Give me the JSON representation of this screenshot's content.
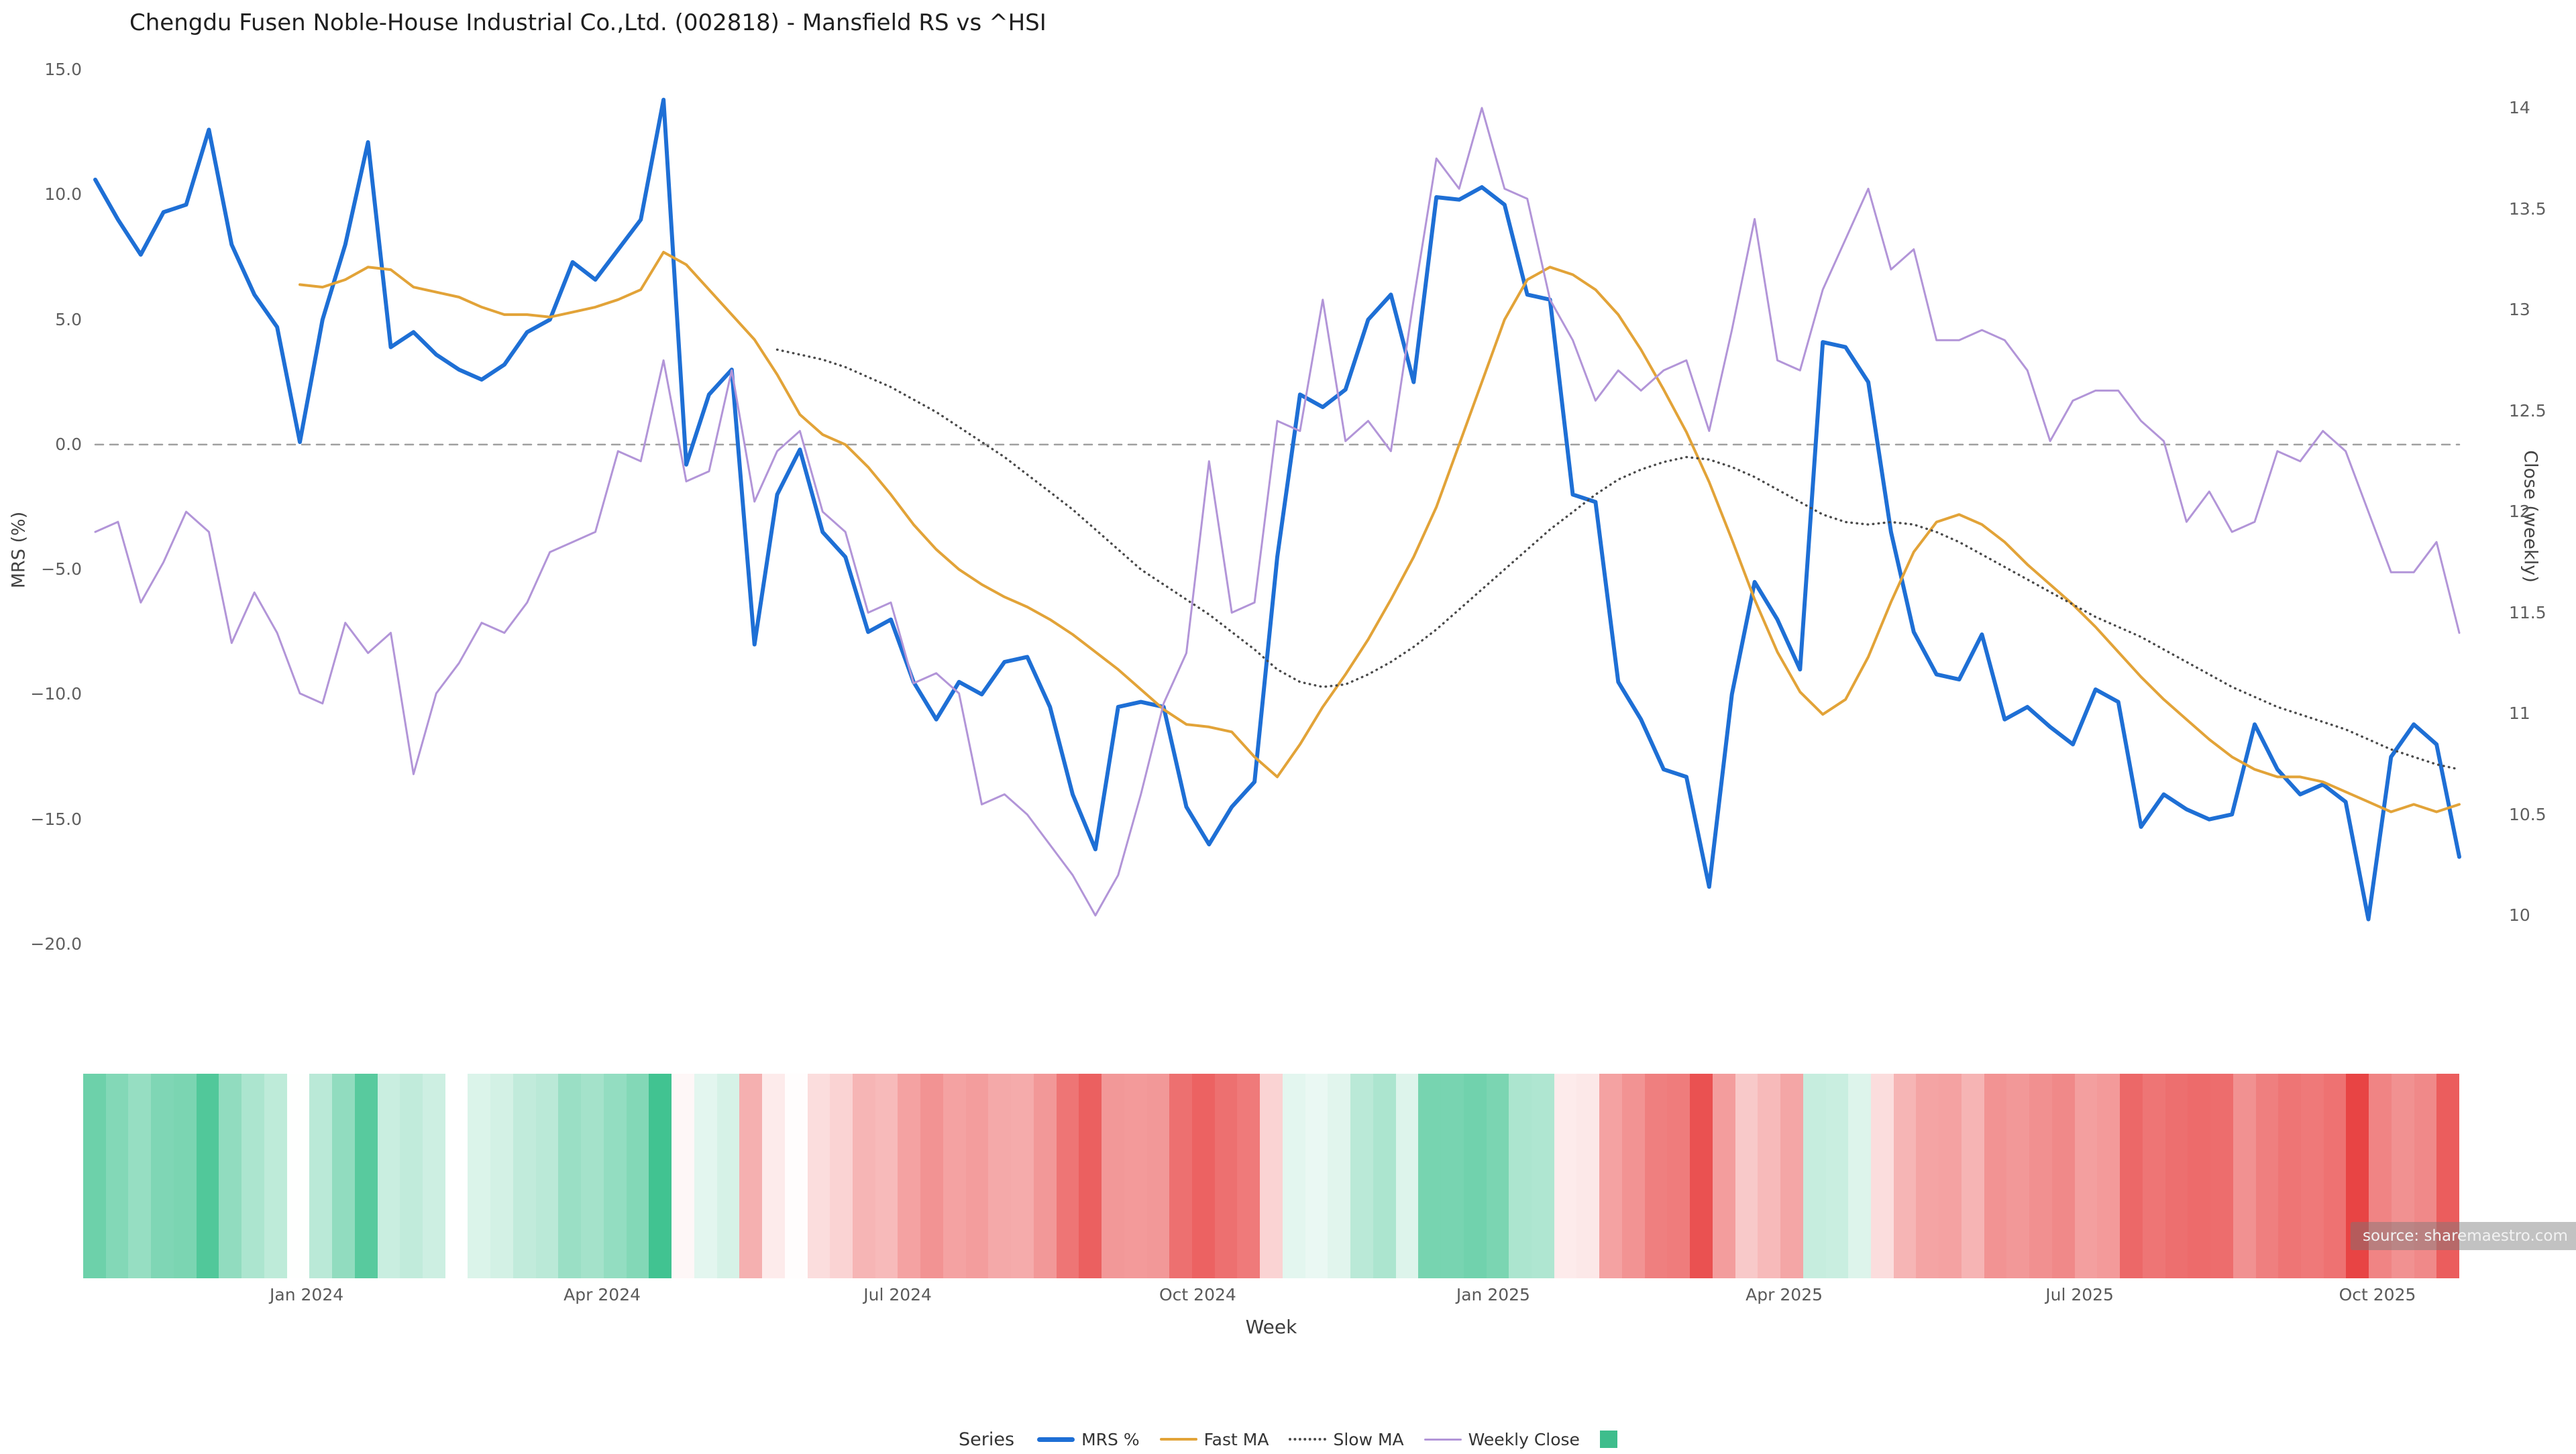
{
  "title": "Chengdu Fusen Noble-House Industrial Co.,Ltd. (002818) - Mansfield RS vs ^HSI",
  "source": "source: sharemaestro.com",
  "colors": {
    "background": "#ffffff",
    "baseline": "#a0a0a0",
    "mrs_blue": "#1e6fd5",
    "fast_ma_orange": "#e2a338",
    "slow_ma_gray": "#4a4a4a",
    "weekly_close_purple": "#b295d8",
    "heatmap_positive": "#3ec28f",
    "heatmap_negative": "#e84444"
  },
  "axes": {
    "left": {
      "title": "MRS (%)",
      "ticks": [
        {
          "label": "15.0",
          "value": 15
        },
        {
          "label": "10.0",
          "value": 10
        },
        {
          "label": "5.0",
          "value": 5
        },
        {
          "label": "0.0",
          "value": 0
        },
        {
          "label": "−5.0",
          "value": -5
        },
        {
          "label": "−10.0",
          "value": -10
        },
        {
          "label": "−15.0",
          "value": -15
        },
        {
          "label": "−20.0",
          "value": -20
        }
      ]
    },
    "right": {
      "title": "Close (weekly)",
      "ticks": [
        {
          "label": "14",
          "value": 14
        },
        {
          "label": "13.5",
          "value": 13.5
        },
        {
          "label": "13",
          "value": 13
        },
        {
          "label": "12.5",
          "value": 12.5
        },
        {
          "label": "12",
          "value": 12
        },
        {
          "label": "11.5",
          "value": 11.5
        },
        {
          "label": "11",
          "value": 11
        },
        {
          "label": "10.5",
          "value": 10.5
        },
        {
          "label": "10",
          "value": 10
        }
      ]
    },
    "x": {
      "title": "Week",
      "ticks": [
        {
          "label": "Jan 2024",
          "week": 9.3
        },
        {
          "label": "Apr 2024",
          "week": 22.3
        },
        {
          "label": "Jul 2024",
          "week": 35.3
        },
        {
          "label": "Oct 2024",
          "week": 48.5
        },
        {
          "label": "Jan 2025",
          "week": 61.5
        },
        {
          "label": "Apr 2025",
          "week": 74.3
        },
        {
          "label": "Jul 2025",
          "week": 87.3
        },
        {
          "label": "Oct 2025",
          "week": 100.4
        }
      ]
    }
  },
  "legend": {
    "label": "Series",
    "entries": [
      {
        "label": "MRS %",
        "kind": "line",
        "color": "#1e6fd5",
        "width": 7,
        "dash": "solid"
      },
      {
        "label": "Fast MA",
        "kind": "line",
        "color": "#e2a338",
        "width": 4,
        "dash": "solid"
      },
      {
        "label": "Slow MA",
        "kind": "line",
        "color": "#4a4a4a",
        "width": 4,
        "dash": "dotted"
      },
      {
        "label": "Weekly Close",
        "kind": "line",
        "color": "#b295d8",
        "width": 3,
        "dash": "solid"
      },
      {
        "label": "",
        "kind": "square",
        "color": "#3ebd8c"
      }
    ]
  },
  "chart_data": {
    "type": "line",
    "x_unit": "week",
    "n_weeks": 105,
    "x_tick_labels": [
      "Jan 2024",
      "Apr 2024",
      "Jul 2024",
      "Oct 2024",
      "Jan 2025",
      "Apr 2025",
      "Jul 2025",
      "Oct 2025"
    ],
    "y_left_label": "MRS (%)",
    "y_right_label": "Close (weekly)",
    "y_left_range": [
      -20,
      15
    ],
    "y_right_range": [
      10,
      14
    ],
    "baseline": {
      "axis": "left",
      "value": 0,
      "style": "dashed"
    },
    "grid": false,
    "series": [
      {
        "name": "MRS %",
        "axis": "left",
        "color": "#1e6fd5",
        "style": "solid",
        "stroke_width": 6,
        "values": [
          10.6,
          9.0,
          7.6,
          9.3,
          9.6,
          12.6,
          8.0,
          6.0,
          4.7,
          0.1,
          5.0,
          8.0,
          12.1,
          3.9,
          4.5,
          3.6,
          3.0,
          2.6,
          3.2,
          4.5,
          5.0,
          7.3,
          6.6,
          7.8,
          9.0,
          13.8,
          -0.8,
          2.0,
          3.0,
          -8.0,
          -2.0,
          -0.2,
          -3.5,
          -4.5,
          -7.5,
          -7.0,
          -9.5,
          -11.0,
          -9.5,
          -10.0,
          -8.7,
          -8.5,
          -10.5,
          -14.0,
          -16.2,
          -10.5,
          -10.3,
          -10.5,
          -14.5,
          -16.0,
          -14.5,
          -13.5,
          -4.5,
          2.0,
          1.5,
          2.2,
          5.0,
          6.0,
          2.5,
          9.9,
          9.8,
          10.3,
          9.6,
          6.0,
          5.8,
          -2.0,
          -2.3,
          -9.5,
          -11.0,
          -13.0,
          -13.3,
          -17.7,
          -10.0,
          -5.5,
          -7.0,
          -9.0,
          4.1,
          3.9,
          2.5,
          -3.5,
          -7.5,
          -9.2,
          -9.4,
          -7.6,
          -11.0,
          -10.5,
          -11.3,
          -12.0,
          -9.8,
          -10.3,
          -15.3,
          -14.0,
          -14.6,
          -15.0,
          -14.8,
          -11.2,
          -13.0,
          -14.0,
          -13.6,
          -14.3,
          -19.0,
          -12.5,
          -11.2,
          -12.0,
          -16.5
        ]
      },
      {
        "name": "Fast MA",
        "axis": "left",
        "color": "#e2a338",
        "style": "solid",
        "stroke_width": 4,
        "values": [
          null,
          null,
          null,
          null,
          null,
          null,
          null,
          null,
          null,
          6.4,
          6.3,
          6.6,
          7.1,
          7.0,
          6.3,
          6.1,
          5.9,
          5.5,
          5.2,
          5.2,
          5.1,
          5.3,
          5.5,
          5.8,
          6.2,
          7.7,
          7.2,
          6.2,
          5.2,
          4.2,
          2.8,
          1.2,
          0.4,
          0.0,
          -0.9,
          -2.0,
          -3.2,
          -4.2,
          -5.0,
          -5.6,
          -6.1,
          -6.5,
          -7.0,
          -7.6,
          -8.3,
          -9.0,
          -9.8,
          -10.6,
          -11.2,
          -11.3,
          -11.5,
          -12.5,
          -13.3,
          -12.0,
          -10.5,
          -9.2,
          -7.8,
          -6.2,
          -4.5,
          -2.5,
          0.0,
          2.5,
          5.0,
          6.6,
          7.1,
          6.8,
          6.2,
          5.2,
          3.8,
          2.2,
          0.5,
          -1.5,
          -3.8,
          -6.2,
          -8.3,
          -9.9,
          -10.8,
          -10.2,
          -8.5,
          -6.3,
          -4.3,
          -3.1,
          -2.8,
          -3.2,
          -3.9,
          -4.8,
          -5.6,
          -6.4,
          -7.3,
          -8.3,
          -9.3,
          -10.2,
          -11.0,
          -11.8,
          -12.5,
          -13.0,
          -13.3,
          -13.3,
          -13.5,
          -13.9,
          -14.3,
          -14.7,
          -14.4,
          -14.7,
          -14.4
        ]
      },
      {
        "name": "Slow MA",
        "axis": "left",
        "color": "#4a4a4a",
        "style": "dotted",
        "stroke_width": 3.4,
        "values": [
          null,
          null,
          null,
          null,
          null,
          null,
          null,
          null,
          null,
          null,
          null,
          null,
          null,
          null,
          null,
          null,
          null,
          null,
          null,
          null,
          null,
          null,
          null,
          null,
          null,
          null,
          null,
          null,
          null,
          null,
          3.8,
          3.6,
          3.4,
          3.1,
          2.7,
          2.3,
          1.8,
          1.3,
          0.7,
          0.1,
          -0.5,
          -1.2,
          -1.9,
          -2.6,
          -3.4,
          -4.2,
          -5.0,
          -5.6,
          -6.2,
          -6.8,
          -7.5,
          -8.2,
          -9.0,
          -9.5,
          -9.7,
          -9.6,
          -9.2,
          -8.7,
          -8.1,
          -7.4,
          -6.6,
          -5.8,
          -5.0,
          -4.2,
          -3.4,
          -2.7,
          -2.0,
          -1.4,
          -1.0,
          -0.7,
          -0.5,
          -0.6,
          -0.9,
          -1.3,
          -1.8,
          -2.3,
          -2.8,
          -3.1,
          -3.2,
          -3.1,
          -3.2,
          -3.5,
          -3.9,
          -4.4,
          -4.9,
          -5.4,
          -5.9,
          -6.4,
          -6.9,
          -7.3,
          -7.7,
          -8.2,
          -8.7,
          -9.2,
          -9.7,
          -10.1,
          -10.5,
          -10.8,
          -11.1,
          -11.4,
          -11.8,
          -12.2,
          -12.5,
          -12.8,
          -13.0
        ]
      },
      {
        "name": "Weekly Close",
        "axis": "right",
        "color": "#b295d8",
        "style": "solid",
        "stroke_width": 3,
        "values": [
          11.9,
          11.95,
          11.55,
          11.75,
          12.0,
          11.9,
          11.35,
          11.6,
          11.4,
          11.1,
          11.05,
          11.45,
          11.3,
          11.4,
          10.7,
          11.1,
          11.25,
          11.45,
          11.4,
          11.55,
          11.8,
          11.85,
          11.9,
          12.3,
          12.25,
          12.75,
          12.15,
          12.2,
          12.7,
          12.05,
          12.3,
          12.4,
          12.0,
          11.9,
          11.5,
          11.55,
          11.15,
          11.2,
          11.1,
          10.55,
          10.6,
          10.5,
          10.35,
          10.2,
          10.0,
          10.2,
          10.6,
          11.05,
          11.3,
          12.25,
          11.5,
          11.55,
          12.45,
          12.4,
          13.05,
          12.35,
          12.45,
          12.3,
          13.05,
          13.75,
          13.6,
          14.0,
          13.6,
          13.55,
          13.05,
          12.85,
          12.55,
          12.7,
          12.6,
          12.7,
          12.75,
          12.4,
          12.9,
          13.45,
          12.75,
          12.7,
          13.1,
          13.35,
          13.6,
          13.2,
          13.3,
          12.85,
          12.85,
          12.9,
          12.85,
          12.7,
          12.35,
          12.55,
          12.6,
          12.6,
          12.45,
          12.35,
          11.95,
          12.1,
          11.9,
          11.95,
          12.3,
          12.25,
          12.4,
          12.3,
          12.0,
          11.7,
          11.7,
          11.85,
          11.4
        ]
      }
    ],
    "heatmap": {
      "source_series": "MRS %",
      "positive_color": "#3ec28f",
      "negative_color": "#e84444",
      "positive_scale_max": 14,
      "negative_scale_max": 19,
      "gap_weeks": [
        16
      ]
    }
  }
}
